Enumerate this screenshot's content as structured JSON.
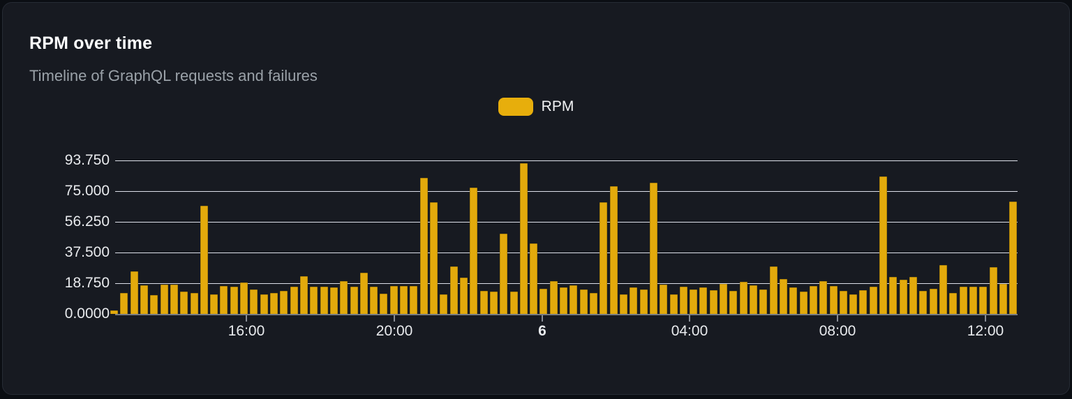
{
  "card": {
    "title": "RPM over time",
    "subtitle": "Timeline of GraphQL requests and failures"
  },
  "legend": {
    "label": "RPM",
    "swatch_color": "#e7ae0c"
  },
  "chart_data": {
    "type": "bar",
    "title": "RPM over time",
    "subtitle": "Timeline of GraphQL requests and failures",
    "series_name": "RPM",
    "bar_color": "#e3aa0c",
    "xlabel": "",
    "ylabel": "",
    "ylim": [
      0,
      93.75
    ],
    "grid": true,
    "legend_position": "top-center",
    "y_ticks": [
      {
        "label": "93.750",
        "value": 93.75
      },
      {
        "label": "75.000",
        "value": 75.0
      },
      {
        "label": "56.250",
        "value": 56.25
      },
      {
        "label": "37.500",
        "value": 37.5
      },
      {
        "label": "18.750",
        "value": 18.75
      },
      {
        "label": "0.0000",
        "value": 0.0
      }
    ],
    "x_ticks": [
      {
        "label": "16:00",
        "pos": 0.1454,
        "bold": false
      },
      {
        "label": "20:00",
        "pos": 0.3094,
        "bold": false
      },
      {
        "label": "6",
        "pos": 0.4733,
        "bold": true
      },
      {
        "label": "04:00",
        "pos": 0.6365,
        "bold": false
      },
      {
        "label": "08:00",
        "pos": 0.8005,
        "bold": false
      },
      {
        "label": "12:00",
        "pos": 0.9644,
        "bold": false
      }
    ],
    "values": [
      2,
      13,
      26,
      17.5,
      11.5,
      18,
      18,
      13.5,
      13,
      66,
      12,
      17,
      16.5,
      19,
      15,
      12,
      13,
      14,
      16.5,
      23,
      16.5,
      16.5,
      16,
      20,
      16.5,
      25,
      16.5,
      12.5,
      17,
      17,
      17,
      83,
      68,
      12,
      29,
      22,
      77,
      14,
      13.5,
      49,
      13.5,
      92,
      43,
      15.5,
      20,
      16,
      17.5,
      15,
      13,
      68,
      78,
      12,
      16,
      15,
      80,
      18,
      12,
      16.5,
      15,
      16,
      14.5,
      18.5,
      14,
      19.5,
      17.5,
      15,
      29,
      21.5,
      16,
      13.5,
      17,
      20,
      17,
      14,
      12,
      14.5,
      16.5,
      84,
      22.5,
      21,
      22.5,
      14,
      15.5,
      30,
      13,
      16.5,
      16.5,
      16.5,
      28.5,
      18.5,
      68.5
    ]
  }
}
